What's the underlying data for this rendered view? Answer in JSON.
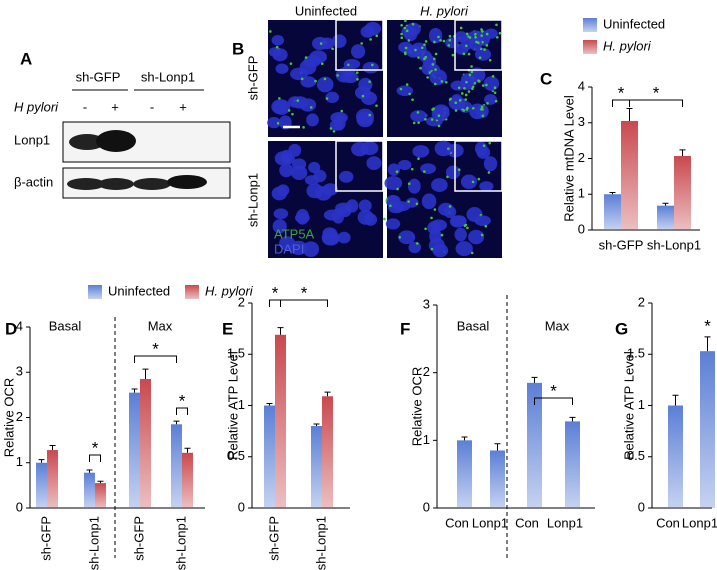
{
  "panel_a": {
    "label": "A",
    "columns": [
      "sh-GFP",
      "sh-Lonp1"
    ],
    "row_label": "H pylori",
    "signs": [
      "-",
      "+",
      "-",
      "+"
    ],
    "bands": [
      "Lonp1",
      "β-actin"
    ]
  },
  "panel_b": {
    "label": "B",
    "columns": [
      "Uninfected",
      "H. pylori"
    ],
    "rows": [
      "sh-GFP",
      "sh-Lonp1"
    ],
    "stains": [
      "ATP5A",
      "DAPI"
    ]
  },
  "chart_data": [
    {
      "type": "bar",
      "label": "C",
      "ylabel": "Relative mtDNA Level",
      "categories": [
        "sh-GFP",
        "sh-Lonp1"
      ],
      "series": [
        {
          "name": "Uninfected",
          "color": "#5b7fd6",
          "values": [
            1.0,
            0.68
          ],
          "errors": [
            0.05,
            0.07
          ]
        },
        {
          "name": "H. pylori",
          "color": "#c9494e",
          "values": [
            3.05,
            2.07
          ],
          "errors": [
            0.35,
            0.17
          ]
        }
      ],
      "ylim": [
        0,
        4
      ],
      "yticks": [
        0,
        1,
        2,
        3,
        4
      ],
      "significance": [
        "*",
        "*"
      ]
    },
    {
      "type": "bar",
      "label": "D",
      "ylabel": "Relative OCR",
      "categories": [
        "sh-GFP",
        "sh-Lonp1",
        "sh-GFP",
        "sh-Lonp1"
      ],
      "groups": [
        "Basal",
        "Max"
      ],
      "series": [
        {
          "name": "Uninfected",
          "color": "#5b7fd6",
          "values": [
            1.0,
            0.78,
            2.55,
            1.85
          ],
          "errors": [
            0.07,
            0.06,
            0.08,
            0.07
          ]
        },
        {
          "name": "H. pylori",
          "color": "#c9494e",
          "values": [
            1.28,
            0.55,
            2.85,
            1.22
          ],
          "errors": [
            0.1,
            0.04,
            0.22,
            0.1
          ]
        }
      ],
      "ylim": [
        0,
        4
      ],
      "yticks": [
        0,
        1,
        2,
        3,
        4
      ],
      "significance": [
        "*",
        "*",
        "*"
      ]
    },
    {
      "type": "bar",
      "label": "E",
      "ylabel": "Relative ATP Level",
      "categories": [
        "sh-GFP",
        "sh-Lonp1"
      ],
      "series": [
        {
          "color": "#5b7fd6",
          "values": [
            1.0,
            0.8
          ],
          "errors": [
            0.02,
            0.02
          ]
        },
        {
          "color": "#c9494e",
          "values": [
            1.69,
            1.09
          ],
          "errors": [
            0.07,
            0.04
          ]
        }
      ],
      "ylim": [
        0,
        2
      ],
      "yticks": [
        0,
        0.5,
        1,
        1.5,
        2
      ],
      "significance": [
        "*",
        "*"
      ]
    },
    {
      "type": "bar",
      "label": "F",
      "ylabel": "Relative OCR",
      "categories": [
        "Con",
        "Lonp1",
        "Con",
        "Lonp1"
      ],
      "groups": [
        "Basal",
        "Max"
      ],
      "series": [
        {
          "color": "#5b7fd6",
          "values": [
            1.0,
            0.85,
            1.85,
            1.28
          ],
          "errors": [
            0.05,
            0.1,
            0.08,
            0.06
          ]
        }
      ],
      "ylim": [
        0,
        3
      ],
      "yticks": [
        0,
        1,
        2,
        3
      ],
      "significance": [
        "*"
      ]
    },
    {
      "type": "bar",
      "label": "G",
      "ylabel": "Relative ATP Level",
      "categories": [
        "Con",
        "Lonp1"
      ],
      "series": [
        {
          "color": "#5b7fd6",
          "values": [
            1.0,
            1.53
          ],
          "errors": [
            0.1,
            0.14
          ]
        }
      ],
      "ylim": [
        0,
        2
      ],
      "yticks": [
        0,
        0.5,
        1,
        1.5,
        2
      ],
      "significance": [
        "*"
      ]
    }
  ]
}
